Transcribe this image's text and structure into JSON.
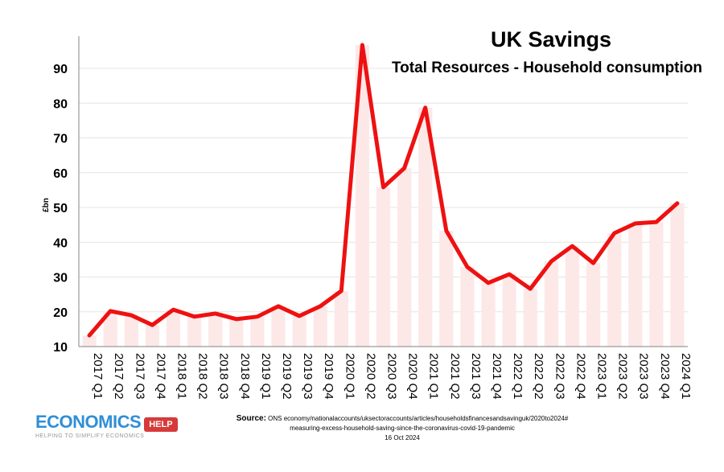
{
  "chart_data": {
    "type": "line",
    "title": "UK Savings",
    "subtitle": "Total Resources - Household consumption",
    "ylabel": "£bn",
    "xlabel": "",
    "ylim": [
      10,
      97
    ],
    "yticks": [
      10,
      20,
      30,
      40,
      50,
      60,
      70,
      80,
      90
    ],
    "grid": true,
    "categories": [
      "2017 Q1",
      "2017 Q2",
      "2017 Q3",
      "2017 Q4",
      "2018 Q1",
      "2018 Q2",
      "2018 Q3",
      "2018 Q4",
      "2019 Q1",
      "2019 Q2",
      "2019 Q3",
      "2019 Q4",
      "2020 Q1",
      "2020 Q2",
      "2020 Q3",
      "2020 Q4",
      "2021 Q1",
      "2021 Q2",
      "2021 Q3",
      "2021 Q4",
      "2022 Q1",
      "2022 Q2",
      "2022 Q3",
      "2022 Q4",
      "2023 Q1",
      "2023 Q2",
      "2023 Q3",
      "2023 Q4",
      "2024 Q1"
    ],
    "values": [
      13.2,
      20.2,
      19.0,
      16.2,
      20.6,
      18.6,
      19.5,
      17.9,
      18.6,
      21.6,
      18.8,
      21.6,
      26.0,
      96.7,
      55.8,
      61.3,
      78.7,
      43.3,
      32.9,
      28.3,
      30.8,
      26.6,
      34.5,
      38.9,
      34.0,
      42.6,
      45.4,
      45.8,
      51.2
    ],
    "colors": {
      "line": "#ee1111",
      "bars": "#fde8e8",
      "grid": "#e4e4e4"
    }
  },
  "logo": {
    "main": "ECONOMICS",
    "badge": "HELP",
    "tagline": "HELPING TO SIMPLIFY ECONOMICS"
  },
  "source": {
    "label": "Source:",
    "line1": "ONS economy/nationalaccounts/uksectoraccounts/articles/householdsfinancesandsavinguk/2020to2024#",
    "line2": "measuring-excess-household-saving-since-the-coronavirus-covid-19-pandemic",
    "date": "16 Oct 2024"
  }
}
